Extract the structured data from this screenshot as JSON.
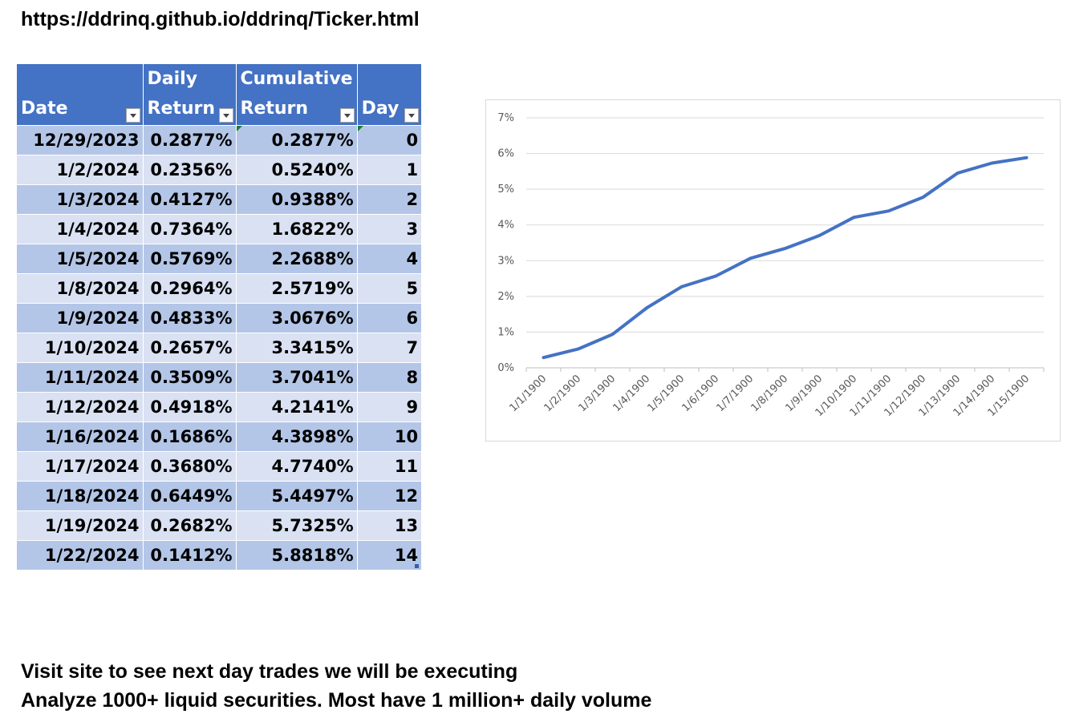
{
  "header": {
    "url": "https://ddrinq.github.io/ddrinq/Ticker.html"
  },
  "table": {
    "columns": [
      {
        "line1": "",
        "line2": "Date"
      },
      {
        "line1": "Daily",
        "line2": "Return"
      },
      {
        "line1": "Cumulative",
        "line2": "Return"
      },
      {
        "line1": "",
        "line2": "Day"
      }
    ],
    "rows": [
      [
        "12/29/2023",
        "0.2877%",
        "0.2877%",
        "0"
      ],
      [
        "1/2/2024",
        "0.2356%",
        "0.5240%",
        "1"
      ],
      [
        "1/3/2024",
        "0.4127%",
        "0.9388%",
        "2"
      ],
      [
        "1/4/2024",
        "0.7364%",
        "1.6822%",
        "3"
      ],
      [
        "1/5/2024",
        "0.5769%",
        "2.2688%",
        "4"
      ],
      [
        "1/8/2024",
        "0.2964%",
        "2.5719%",
        "5"
      ],
      [
        "1/9/2024",
        "0.4833%",
        "3.0676%",
        "6"
      ],
      [
        "1/10/2024",
        "0.2657%",
        "3.3415%",
        "7"
      ],
      [
        "1/11/2024",
        "0.3509%",
        "3.7041%",
        "8"
      ],
      [
        "1/12/2024",
        "0.4918%",
        "4.2141%",
        "9"
      ],
      [
        "1/16/2024",
        "0.1686%",
        "4.3898%",
        "10"
      ],
      [
        "1/17/2024",
        "0.3680%",
        "4.7740%",
        "11"
      ],
      [
        "1/18/2024",
        "0.6449%",
        "5.4497%",
        "12"
      ],
      [
        "1/19/2024",
        "0.2682%",
        "5.7325%",
        "13"
      ],
      [
        "1/22/2024",
        "0.1412%",
        "5.8818%",
        "14"
      ]
    ]
  },
  "chart_data": {
    "type": "line",
    "x": [
      "1/1/1900",
      "1/2/1900",
      "1/3/1900",
      "1/4/1900",
      "1/5/1900",
      "1/6/1900",
      "1/7/1900",
      "1/8/1900",
      "1/9/1900",
      "1/10/1900",
      "1/11/1900",
      "1/12/1900",
      "1/13/1900",
      "1/14/1900",
      "1/15/1900"
    ],
    "series": [
      {
        "values": [
          0.2877,
          0.524,
          0.9388,
          1.6822,
          2.2688,
          2.5719,
          3.0676,
          3.3415,
          3.7041,
          4.2141,
          4.3898,
          4.774,
          5.4497,
          5.7325,
          5.8818
        ]
      }
    ],
    "yticks": [
      "0%",
      "1%",
      "2%",
      "3%",
      "4%",
      "5%",
      "6%",
      "7%"
    ],
    "ylim": [
      0,
      7
    ],
    "grid": true,
    "line_color": "#4472c4",
    "title": "",
    "xlabel": "",
    "ylabel": ""
  },
  "footer": {
    "line1": "Visit site to see next day trades we will be executing",
    "line2": "Analyze 1000+ liquid securities.  Most have 1 million+ daily volume"
  },
  "colors": {
    "header_bg": "#4472c4",
    "row_dark": "#b4c6e7",
    "row_light": "#d9e1f2"
  }
}
